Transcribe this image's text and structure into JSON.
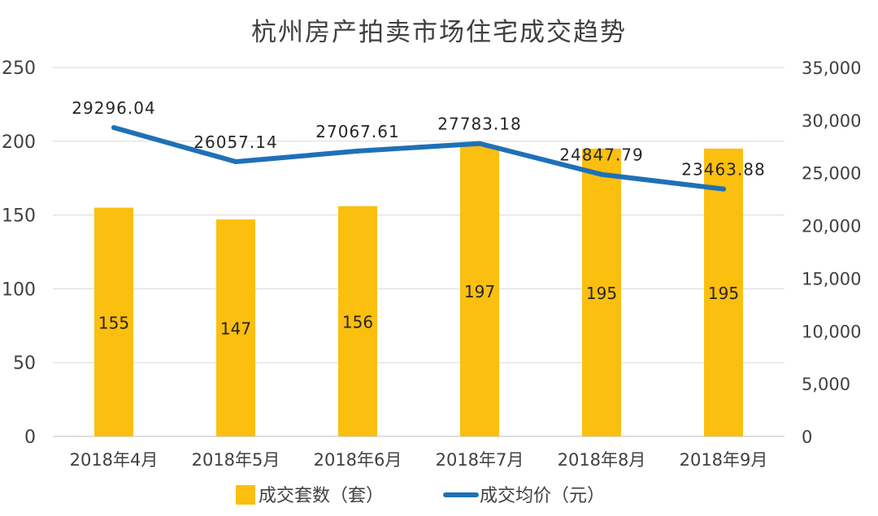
{
  "chart_data": {
    "type": "bar",
    "title": "杭州房产拍卖市场住宅成交趋势",
    "categories": [
      "2018年4月",
      "2018年5月",
      "2018年6月",
      "2018年7月",
      "2018年8月",
      "2018年9月"
    ],
    "series": [
      {
        "name": "成交套数（套）",
        "type": "bar",
        "axis": "left",
        "values": [
          155,
          147,
          156,
          197,
          195,
          195
        ],
        "labels": [
          "155",
          "147",
          "156",
          "197",
          "195",
          "195"
        ],
        "color": "#FBBF0F"
      },
      {
        "name": "成交均价（元）",
        "type": "line",
        "axis": "right",
        "values": [
          29296.04,
          26057.14,
          27067.61,
          27783.18,
          24847.79,
          23463.88
        ],
        "labels": [
          "29296.04",
          "26057.14",
          "27067.61",
          "27783.18",
          "24847.79",
          "23463.88"
        ],
        "color": "#1F70B8"
      }
    ],
    "y_left": {
      "min": 0,
      "max": 250,
      "step": 50,
      "ticks": [
        "0",
        "50",
        "100",
        "150",
        "200",
        "250"
      ]
    },
    "y_right": {
      "min": 0,
      "max": 35000,
      "step": 5000,
      "ticks": [
        "0",
        "5,000",
        "10,000",
        "15,000",
        "20,000",
        "25,000",
        "30,000",
        "35,000"
      ]
    },
    "grid": true,
    "legend": "bottom"
  }
}
